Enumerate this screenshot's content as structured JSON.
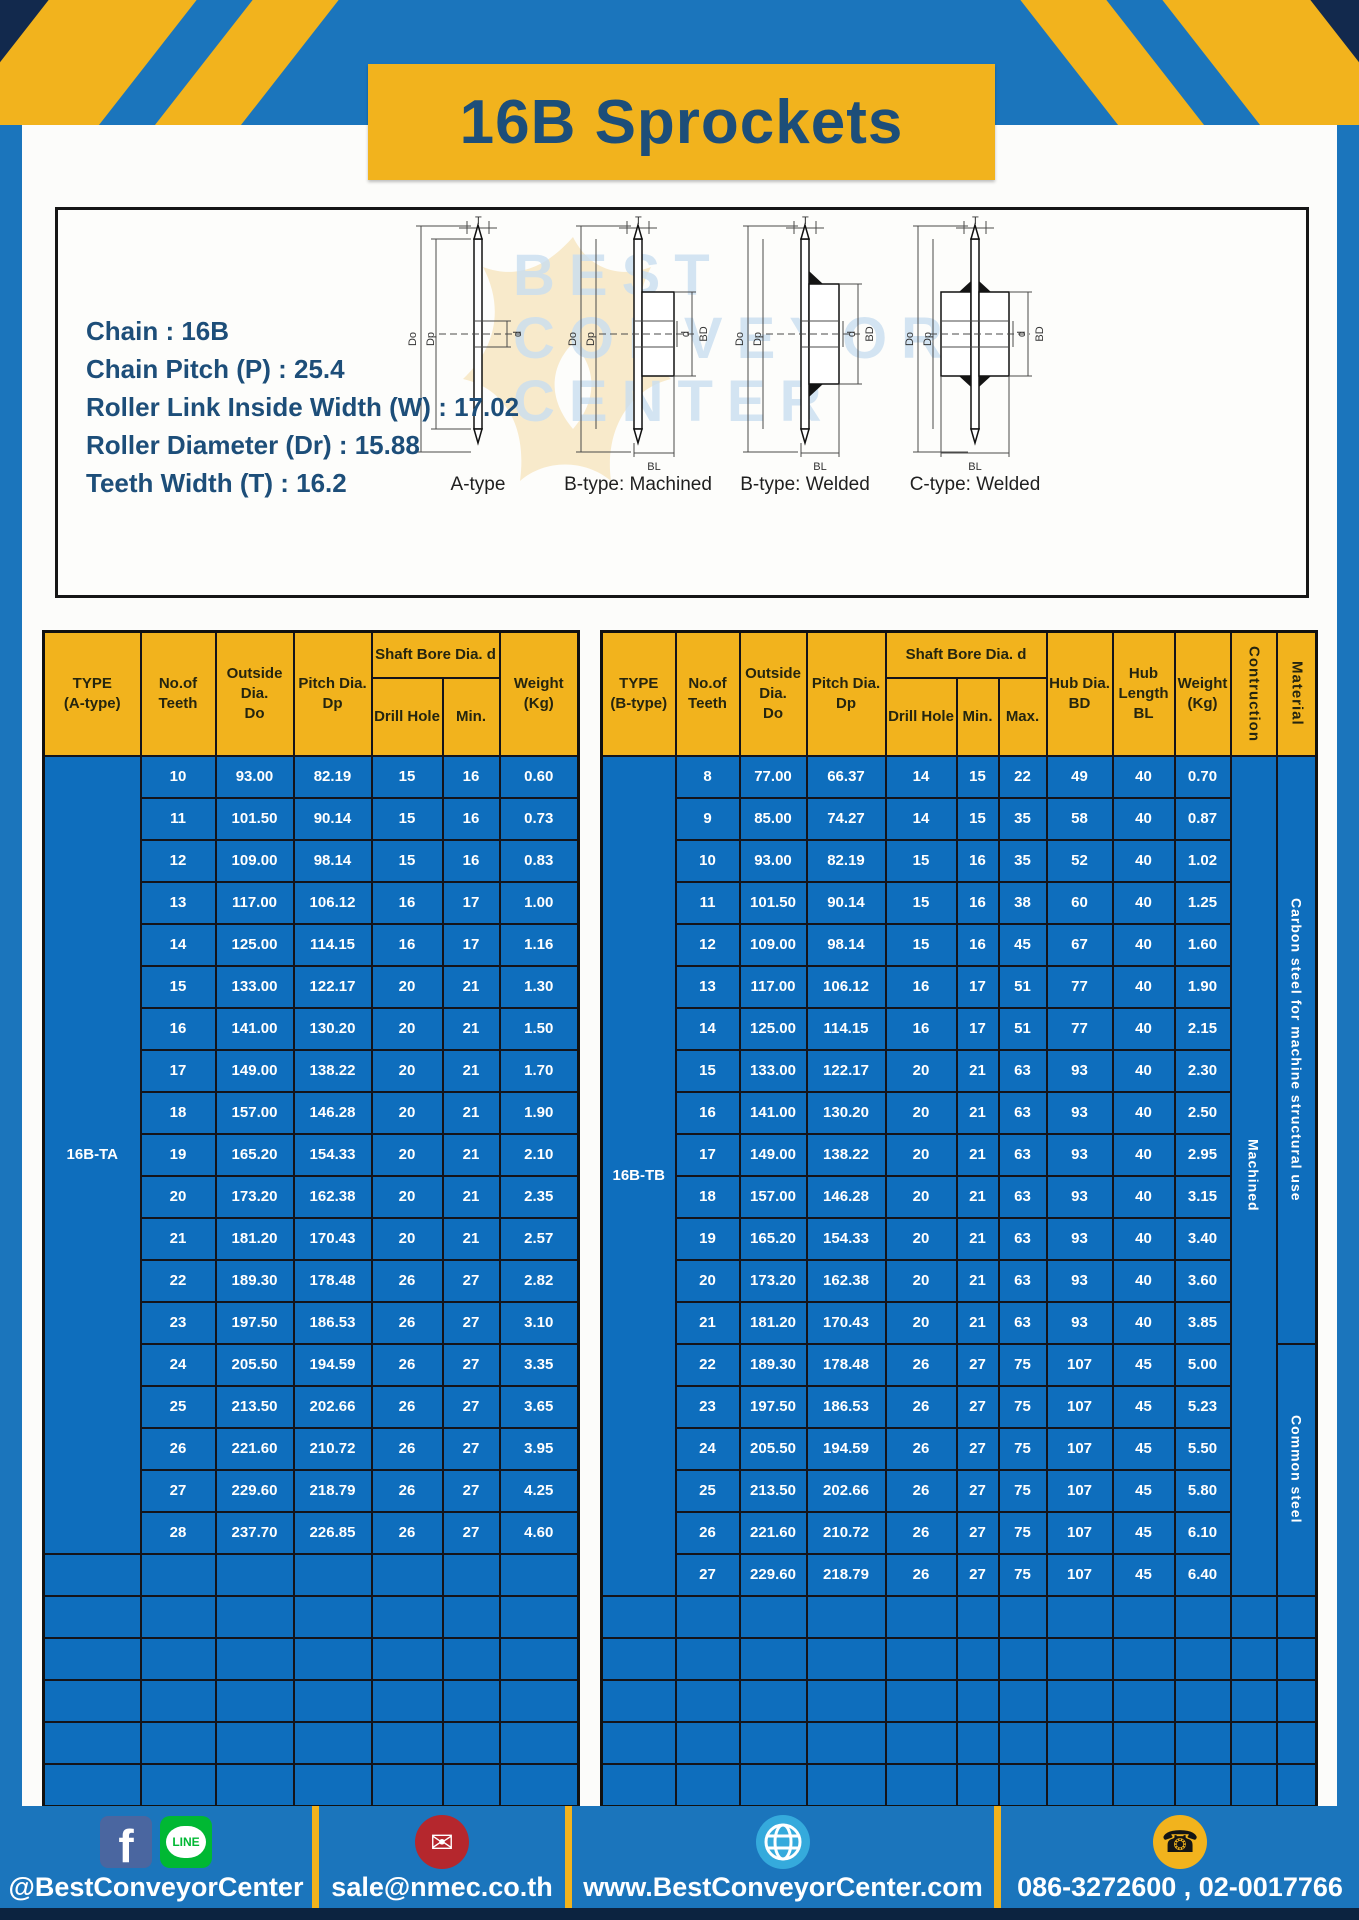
{
  "page": {
    "title": "16B Sprockets"
  },
  "colors": {
    "frame_blue": "#1b75bc",
    "cell_blue": "#0e6ebd",
    "accent_yellow": "#f2b31d",
    "navy_text": "#1d4e79",
    "corner_navy": "#12294d",
    "footer_bottom_navy": "#0c2340",
    "facebook_blue": "#4a66a0",
    "line_green": "#00b833",
    "mail_red": "#b5272d",
    "globe_blue": "#35aadc"
  },
  "specs": {
    "lines": [
      "Chain : 16B",
      "Chain Pitch (P) : 25.4",
      "Roller Link Inside Width (W) : 17.02",
      "Roller Diameter (Dr) : 15.88",
      "Teeth Width (T) : 16.2"
    ]
  },
  "diagrams": {
    "labels": [
      "A-type",
      "B-type: Machined",
      "B-type: Welded",
      "C-type: Welded"
    ],
    "dims": {
      "t": "T",
      "do": "Do",
      "dp": "Dp",
      "d": "d",
      "bd": "BD",
      "bl": "BL"
    }
  },
  "watermark": {
    "lines": [
      "BEST",
      "CONVEYOR",
      "CENTER"
    ]
  },
  "table_a": {
    "type_label": "16B-TA",
    "headers": {
      "type": "TYPE\n(A-type)",
      "teeth": "No.of\nTeeth",
      "outside": "Outside\nDia.\nDo",
      "pitch": "Pitch Dia.\nDp",
      "shaft_bore": "Shaft Bore Dia. d",
      "drill": "Drill Hole",
      "min": "Min.",
      "weight": "Weight\n(Kg)"
    },
    "rows": [
      [
        "10",
        "93.00",
        "82.19",
        "15",
        "16",
        "0.60"
      ],
      [
        "11",
        "101.50",
        "90.14",
        "15",
        "16",
        "0.73"
      ],
      [
        "12",
        "109.00",
        "98.14",
        "15",
        "16",
        "0.83"
      ],
      [
        "13",
        "117.00",
        "106.12",
        "16",
        "17",
        "1.00"
      ],
      [
        "14",
        "125.00",
        "114.15",
        "16",
        "17",
        "1.16"
      ],
      [
        "15",
        "133.00",
        "122.17",
        "20",
        "21",
        "1.30"
      ],
      [
        "16",
        "141.00",
        "130.20",
        "20",
        "21",
        "1.50"
      ],
      [
        "17",
        "149.00",
        "138.22",
        "20",
        "21",
        "1.70"
      ],
      [
        "18",
        "157.00",
        "146.28",
        "20",
        "21",
        "1.90"
      ],
      [
        "19",
        "165.20",
        "154.33",
        "20",
        "21",
        "2.10"
      ],
      [
        "20",
        "173.20",
        "162.38",
        "20",
        "21",
        "2.35"
      ],
      [
        "21",
        "181.20",
        "170.43",
        "20",
        "21",
        "2.57"
      ],
      [
        "22",
        "189.30",
        "178.48",
        "26",
        "27",
        "2.82"
      ],
      [
        "23",
        "197.50",
        "186.53",
        "26",
        "27",
        "3.10"
      ],
      [
        "24",
        "205.50",
        "194.59",
        "26",
        "27",
        "3.35"
      ],
      [
        "25",
        "213.50",
        "202.66",
        "26",
        "27",
        "3.65"
      ],
      [
        "26",
        "221.60",
        "210.72",
        "26",
        "27",
        "3.95"
      ],
      [
        "27",
        "229.60",
        "218.79",
        "26",
        "27",
        "4.25"
      ],
      [
        "28",
        "237.70",
        "226.85",
        "26",
        "27",
        "4.60"
      ]
    ],
    "empty_row_count": 6
  },
  "table_b": {
    "type_label": "16B-TB",
    "headers": {
      "type": "TYPE\n(B-type)",
      "teeth": "No.of\nTeeth",
      "outside": "Outside\nDia.\nDo",
      "pitch": "Pitch Dia.\nDp",
      "shaft_bore": "Shaft Bore Dia. d",
      "drill": "Drill Hole",
      "min": "Min.",
      "max": "Max.",
      "hub_dia": "Hub Dia.\nBD",
      "hub_len": "Hub\nLength\nBL",
      "weight": "Weight\n(Kg)",
      "contruction": "Contruction",
      "material": "Material"
    },
    "contruction_value": "Machined",
    "materials": [
      {
        "label": "Carbon steel for machine structural use",
        "span": 14
      },
      {
        "label": "Common steel",
        "span": 6
      }
    ],
    "rows": [
      [
        "8",
        "77.00",
        "66.37",
        "14",
        "15",
        "22",
        "49",
        "40",
        "0.70"
      ],
      [
        "9",
        "85.00",
        "74.27",
        "14",
        "15",
        "35",
        "58",
        "40",
        "0.87"
      ],
      [
        "10",
        "93.00",
        "82.19",
        "15",
        "16",
        "35",
        "52",
        "40",
        "1.02"
      ],
      [
        "11",
        "101.50",
        "90.14",
        "15",
        "16",
        "38",
        "60",
        "40",
        "1.25"
      ],
      [
        "12",
        "109.00",
        "98.14",
        "15",
        "16",
        "45",
        "67",
        "40",
        "1.60"
      ],
      [
        "13",
        "117.00",
        "106.12",
        "16",
        "17",
        "51",
        "77",
        "40",
        "1.90"
      ],
      [
        "14",
        "125.00",
        "114.15",
        "16",
        "17",
        "51",
        "77",
        "40",
        "2.15"
      ],
      [
        "15",
        "133.00",
        "122.17",
        "20",
        "21",
        "63",
        "93",
        "40",
        "2.30"
      ],
      [
        "16",
        "141.00",
        "130.20",
        "20",
        "21",
        "63",
        "93",
        "40",
        "2.50"
      ],
      [
        "17",
        "149.00",
        "138.22",
        "20",
        "21",
        "63",
        "93",
        "40",
        "2.95"
      ],
      [
        "18",
        "157.00",
        "146.28",
        "20",
        "21",
        "63",
        "93",
        "40",
        "3.15"
      ],
      [
        "19",
        "165.20",
        "154.33",
        "20",
        "21",
        "63",
        "93",
        "40",
        "3.40"
      ],
      [
        "20",
        "173.20",
        "162.38",
        "20",
        "21",
        "63",
        "93",
        "40",
        "3.60"
      ],
      [
        "21",
        "181.20",
        "170.43",
        "20",
        "21",
        "63",
        "93",
        "40",
        "3.85"
      ],
      [
        "22",
        "189.30",
        "178.48",
        "26",
        "27",
        "75",
        "107",
        "45",
        "5.00"
      ],
      [
        "23",
        "197.50",
        "186.53",
        "26",
        "27",
        "75",
        "107",
        "45",
        "5.23"
      ],
      [
        "24",
        "205.50",
        "194.59",
        "26",
        "27",
        "75",
        "107",
        "45",
        "5.50"
      ],
      [
        "25",
        "213.50",
        "202.66",
        "26",
        "27",
        "75",
        "107",
        "45",
        "5.80"
      ],
      [
        "26",
        "221.60",
        "210.72",
        "26",
        "27",
        "75",
        "107",
        "45",
        "6.10"
      ],
      [
        "27",
        "229.60",
        "218.79",
        "26",
        "27",
        "75",
        "107",
        "45",
        "6.40"
      ]
    ],
    "empty_row_count": 5
  },
  "footer": {
    "facebook_glyph": "f",
    "line_text": "LINE",
    "mail_glyph": "✉",
    "phone_glyph": "☎",
    "items": [
      {
        "icon": "facebook-line",
        "text": "@BestConveyorCenter"
      },
      {
        "icon": "email",
        "text": "sale@nmec.co.th"
      },
      {
        "icon": "globe",
        "text": "www.BestConveyorCenter.com"
      },
      {
        "icon": "phone",
        "text": "086-3272600 , 02-0017766"
      }
    ]
  }
}
